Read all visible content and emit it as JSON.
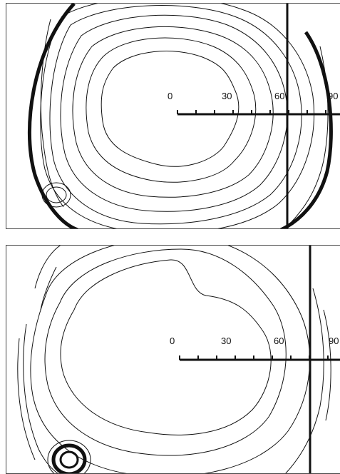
{
  "panels": [
    {
      "id": "top",
      "scale_labels": [
        "0",
        "30",
        "60",
        "90"
      ]
    },
    {
      "id": "bottom",
      "scale_labels": [
        "0",
        "30",
        "60",
        "90"
      ]
    }
  ],
  "colors": {
    "stroke": "#111111",
    "background": "#ffffff"
  }
}
